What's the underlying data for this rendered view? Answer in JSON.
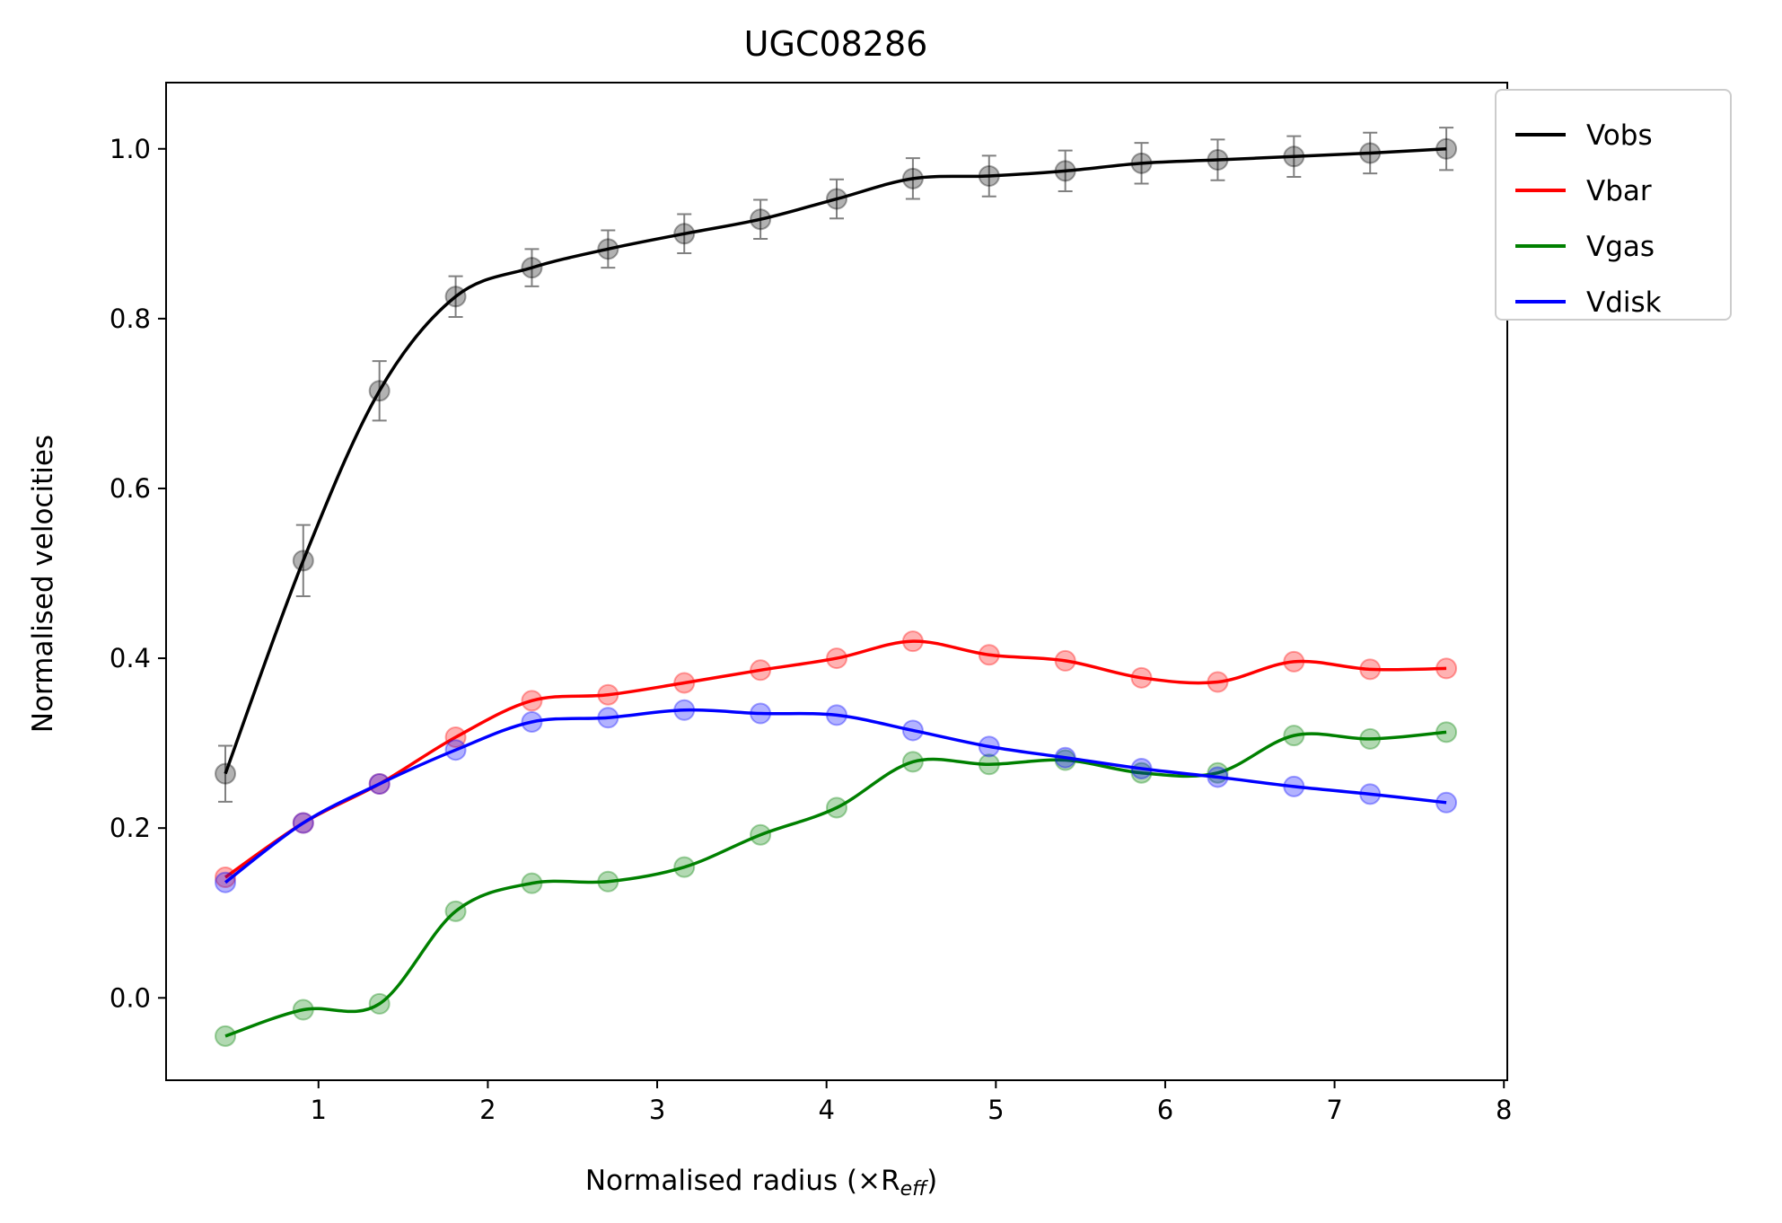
{
  "chart_data": {
    "type": "line",
    "title": "UGC08286",
    "xlabel": "Normalised radius (×R",
    "xlabel_sub": "eff",
    "xlabel_close": ")",
    "ylabel": "Normalised velocities",
    "xlim": [
      0.1,
      8.02
    ],
    "ylim": [
      -0.097,
      1.078
    ],
    "xticks": [
      1,
      2,
      3,
      4,
      5,
      6,
      7,
      8
    ],
    "yticks": [
      0.0,
      0.2,
      0.4,
      0.6,
      0.8,
      1.0
    ],
    "xtick_labels": [
      "1",
      "2",
      "3",
      "4",
      "5",
      "6",
      "7",
      "8"
    ],
    "ytick_labels": [
      "0.0",
      "0.2",
      "0.4",
      "0.6",
      "0.8",
      "1.0"
    ],
    "legend_position": "outside-top-right",
    "x": [
      0.45,
      0.91,
      1.36,
      1.81,
      2.26,
      2.71,
      3.16,
      3.61,
      4.06,
      4.51,
      4.96,
      5.41,
      5.86,
      6.31,
      6.76,
      7.21,
      7.66
    ],
    "series": [
      {
        "name": "Vobs",
        "color": "#000000",
        "values": [
          0.264,
          0.515,
          0.715,
          0.826,
          0.86,
          0.882,
          0.9,
          0.917,
          0.941,
          0.965,
          0.968,
          0.974,
          0.983,
          0.987,
          0.991,
          0.995,
          1.0
        ],
        "errors": [
          0.033,
          0.042,
          0.035,
          0.024,
          0.022,
          0.022,
          0.023,
          0.023,
          0.023,
          0.024,
          0.024,
          0.024,
          0.024,
          0.024,
          0.024,
          0.024,
          0.025
        ]
      },
      {
        "name": "Vbar",
        "color": "#ff0000",
        "values": [
          0.142,
          0.206,
          0.252,
          0.307,
          0.35,
          0.357,
          0.371,
          0.386,
          0.4,
          0.42,
          0.404,
          0.397,
          0.377,
          0.372,
          0.396,
          0.387,
          0.388
        ]
      },
      {
        "name": "Vgas",
        "color": "#008000",
        "values": [
          -0.045,
          -0.014,
          -0.007,
          0.102,
          0.135,
          0.137,
          0.154,
          0.192,
          0.224,
          0.278,
          0.275,
          0.28,
          0.265,
          0.265,
          0.309,
          0.305,
          0.313
        ]
      },
      {
        "name": "Vdisk",
        "color": "#0000ff",
        "values": [
          0.136,
          0.206,
          0.252,
          0.292,
          0.325,
          0.33,
          0.339,
          0.335,
          0.333,
          0.315,
          0.296,
          0.283,
          0.27,
          0.26,
          0.249,
          0.24,
          0.23
        ]
      }
    ]
  }
}
